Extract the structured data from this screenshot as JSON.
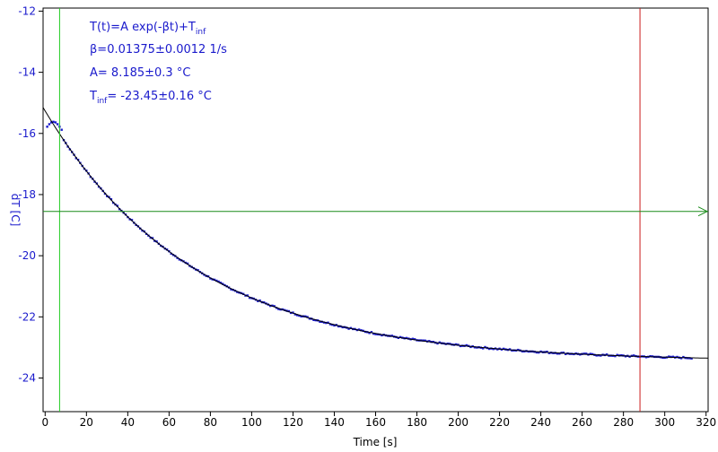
{
  "chart_data": {
    "type": "scatter",
    "title": "",
    "xlabel": "Time [s]",
    "ylabel": "dT [C]",
    "xlim": [
      -1,
      321
    ],
    "ylim": [
      -25.1,
      -11.9
    ],
    "grid": false,
    "colors": {
      "points": "#1a1acc",
      "fit": "#000000",
      "start_marker": "#22cc22",
      "end_marker": "#cc1a1a",
      "level_line": "#1a8c1a",
      "axis_text_x": "#000000",
      "axis_text_y": "#1a1acc"
    },
    "x_ticks": [
      "0",
      "20",
      "40",
      "60",
      "80",
      "100",
      "120",
      "140",
      "160",
      "180",
      "200",
      "220",
      "240",
      "260",
      "280",
      "300",
      "320"
    ],
    "y_ticks": [
      "-12",
      "-14",
      "-16",
      "-18",
      "-20",
      "-22",
      "-24"
    ],
    "fit_model": {
      "A": 8.185,
      "beta": 0.01375,
      "T_inf": -23.45
    },
    "fit_range": [
      -1,
      321
    ],
    "data_points": {
      "x_start": 1,
      "x_end": 313,
      "x_step": 1,
      "first_points": [
        [
          1,
          -15.78
        ],
        [
          2,
          -15.7
        ],
        [
          3,
          -15.64
        ],
        [
          4,
          -15.62
        ],
        [
          5,
          -15.64
        ],
        [
          6,
          -15.7
        ],
        [
          7,
          -15.78
        ],
        [
          8,
          -15.88
        ]
      ]
    },
    "markers": {
      "start_x": 7,
      "end_x": 288,
      "level_y": -18.55
    },
    "annotations": {
      "formula_main": "T(t)=A exp(-βt)+T",
      "formula_sub": "inf",
      "beta_line": "β=0.01375±0.0012 1/s",
      "a_line": "A= 8.185±0.3 °C",
      "tinf_prefix": "T",
      "tinf_sub": "inf",
      "tinf_value": "= -23.45±0.16 °C"
    }
  }
}
